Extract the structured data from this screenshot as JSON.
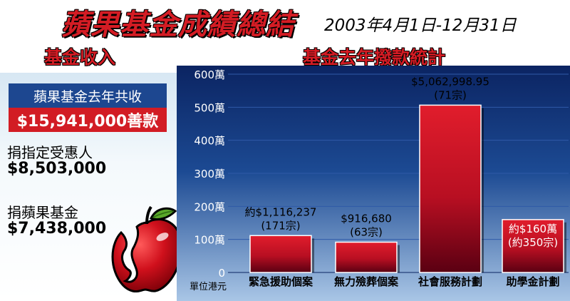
{
  "header": {
    "title": "蘋果基金成績總結",
    "date_range": "2003年4月1日-12月31日"
  },
  "left": {
    "section_title": "基金收入",
    "total_label": "蘋果基金去年共收",
    "total_value": "$15,941,000善款",
    "items": [
      {
        "label": "捐指定受惠人",
        "value": "$8,503,000"
      },
      {
        "label": "捐蘋果基金",
        "value": "$7,438,000"
      }
    ]
  },
  "right": {
    "section_title": "基金去年撥款統計"
  },
  "chart_data": {
    "type": "bar",
    "categories": [
      "緊急援助個案",
      "無力殮葬個案",
      "社會服務計劃",
      "助學金計劃"
    ],
    "values": [
      1116237,
      916680,
      5062998.95,
      1600000
    ],
    "unit_label": "單位港元",
    "ylim": [
      0,
      6000000
    ],
    "yticks": [
      0,
      1000000,
      2000000,
      3000000,
      4000000,
      5000000,
      6000000
    ],
    "ytick_labels": [
      "0",
      "100萬",
      "200萬",
      "300萬",
      "400萬",
      "500萬",
      "600萬"
    ],
    "data_labels": [
      [
        "約$1,116,237",
        "(171宗)"
      ],
      [
        "$916,680",
        "(63宗)"
      ],
      [
        "$5,062,998.95",
        "(71宗)"
      ],
      [
        "約$160萬",
        "(約350宗)"
      ]
    ],
    "grid": true,
    "colors": {
      "bar": "#c8102e",
      "bar_dark": "#5a0010",
      "background_top": "#102d6e",
      "background_bottom": "#8fb3d9",
      "grid": "#2f5aa8"
    }
  }
}
